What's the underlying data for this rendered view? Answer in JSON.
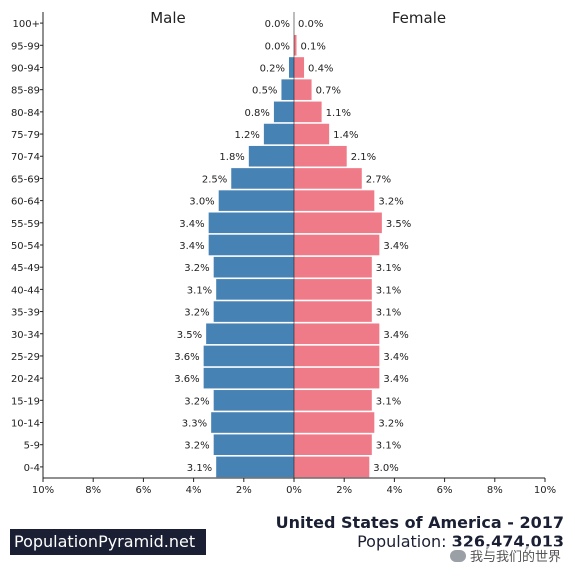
{
  "chart_data": {
    "type": "bar",
    "orientation": "horizontal-pyramid",
    "left_label": "Male",
    "right_label": "Female",
    "categories": [
      "0-4",
      "5-9",
      "10-14",
      "15-19",
      "20-24",
      "25-29",
      "30-34",
      "35-39",
      "40-44",
      "45-49",
      "50-54",
      "55-59",
      "60-64",
      "65-69",
      "70-74",
      "75-79",
      "80-84",
      "85-89",
      "90-94",
      "95-99",
      "100+"
    ],
    "series": [
      {
        "name": "Male",
        "color": "#4682b4",
        "values": [
          3.1,
          3.2,
          3.3,
          3.2,
          3.6,
          3.6,
          3.5,
          3.2,
          3.1,
          3.2,
          3.4,
          3.4,
          3.0,
          2.5,
          1.8,
          1.2,
          0.8,
          0.5,
          0.2,
          0.0,
          0.0
        ]
      },
      {
        "name": "Female",
        "color": "#f07b88",
        "values": [
          3.0,
          3.1,
          3.2,
          3.1,
          3.4,
          3.4,
          3.4,
          3.1,
          3.1,
          3.1,
          3.4,
          3.5,
          3.2,
          2.7,
          2.1,
          1.4,
          1.1,
          0.7,
          0.4,
          0.1,
          0.0
        ]
      }
    ],
    "xlim": [
      -10,
      10
    ],
    "xticks": [
      -10,
      -8,
      -6,
      -4,
      -2,
      0,
      2,
      4,
      6,
      8,
      10
    ],
    "xtick_labels": [
      "10%",
      "8%",
      "6%",
      "4%",
      "2%",
      "0%",
      "2%",
      "4%",
      "6%",
      "8%",
      "10%"
    ],
    "value_suffix": "%",
    "grid": false
  },
  "footer": {
    "brand": "PopulationPyramid.net",
    "title": "United States of America - 2017",
    "population_label": "Population:",
    "population_value": "326,474,013",
    "watermark": "我与我们的世界"
  }
}
